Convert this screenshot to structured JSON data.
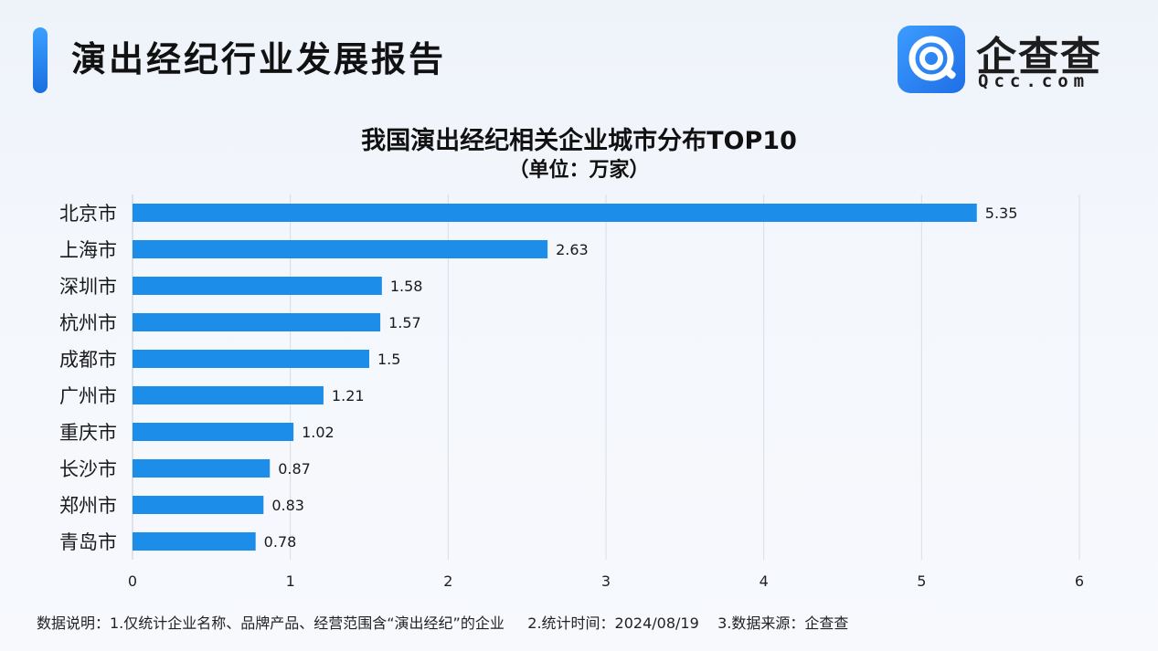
{
  "header": {
    "title": "演出经纪行业发展报告",
    "logo_name": "企查查",
    "logo_domain": "Qcc.com"
  },
  "chart_data": {
    "type": "bar",
    "orientation": "horizontal",
    "title": "我国演出经纪相关企业城市分布TOP10",
    "subtitle": "（单位：万家）",
    "categories": [
      "北京市",
      "上海市",
      "深圳市",
      "杭州市",
      "成都市",
      "广州市",
      "重庆市",
      "长沙市",
      "郑州市",
      "青岛市"
    ],
    "values": [
      5.35,
      2.63,
      1.58,
      1.57,
      1.5,
      1.21,
      1.02,
      0.87,
      0.83,
      0.78
    ],
    "value_labels": [
      "5.35",
      "2.63",
      "1.58",
      "1.57",
      "1.5",
      "1.21",
      "1.02",
      "0.87",
      "0.83",
      "0.78"
    ],
    "xlim": [
      0,
      6
    ],
    "xticks": [
      "0",
      "1",
      "2",
      "3",
      "4",
      "5",
      "6"
    ],
    "grid": true,
    "bar_color": "#1c8de8"
  },
  "footnote": "数据说明：1.仅统计企业名称、品牌产品、经营范围含“演出经纪”的企业     2.统计时间：2024/08/19    3.数据来源：企查查"
}
